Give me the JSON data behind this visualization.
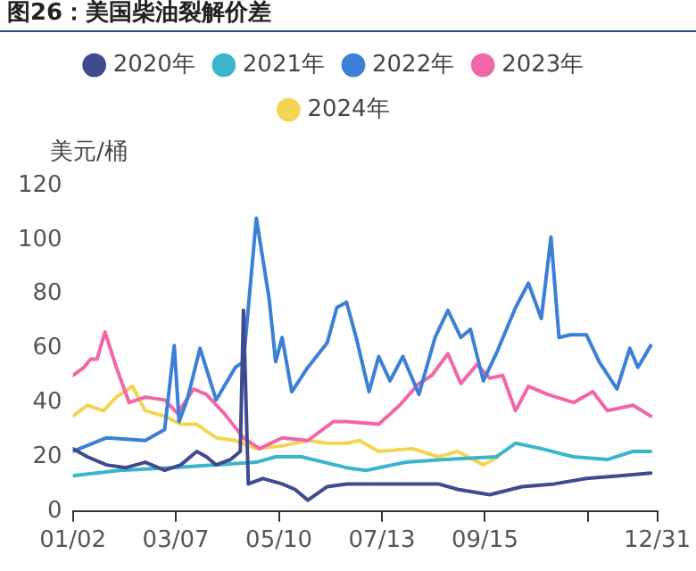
{
  "chart_data": {
    "type": "line",
    "title": "图26：美国柴油裂解价差",
    "ylabel": "美元/桶",
    "xlim": [
      "--01-02",
      "--12-31"
    ],
    "xticks": [
      {
        "value": "--01-02",
        "label": "01/02"
      },
      {
        "value": "--03-07",
        "label": "03/07"
      },
      {
        "value": "--05-10",
        "label": "05/10"
      },
      {
        "value": "--07-13",
        "label": "07/13"
      },
      {
        "value": "--09-15",
        "label": "09/15"
      },
      {
        "value": "--11-18",
        "label": null
      },
      {
        "value": "--12-31",
        "label": "12/31"
      }
    ],
    "ylim": [
      0,
      120
    ],
    "yticks": [
      0,
      20,
      40,
      60,
      80,
      100,
      120
    ],
    "grid": false,
    "legend": "top",
    "marker": "none",
    "line_style": "solid",
    "series": [
      {
        "name": "2020年",
        "color": "#3f4a8f",
        "x": [
          "--01-02",
          "--01-11",
          "--01-23",
          "--02-04",
          "--02-16",
          "--02-28",
          "--03-10",
          "--03-20",
          "--03-26",
          "--04-01",
          "--04-10",
          "--04-16",
          "--04-18",
          "--04-21",
          "--04-30",
          "--05-12",
          "--05-20",
          "--05-28",
          "--06-09",
          "--06-21",
          "--07-20",
          "--08-17",
          "--08-29",
          "--09-18",
          "--10-08",
          "--10-28",
          "--11-17",
          "--12-08",
          "--12-27"
        ],
        "values": [
          23,
          20,
          17,
          16,
          18,
          15,
          17,
          22,
          20,
          17,
          19,
          22,
          74,
          10,
          12,
          10,
          8,
          4,
          9,
          10,
          10,
          10,
          8,
          6,
          9,
          10,
          12,
          13,
          14
        ]
      },
      {
        "name": "2021年",
        "color": "#3ab5cc",
        "x": [
          "--01-02",
          "--01-31",
          "--03-04",
          "--04-01",
          "--04-26",
          "--05-08",
          "--05-24",
          "--06-21",
          "--07-03",
          "--07-28",
          "--08-21",
          "--09-22",
          "--10-04",
          "--10-20",
          "--11-09",
          "--11-30",
          "--12-16",
          "--12-27"
        ],
        "values": [
          13,
          15,
          16,
          17,
          18,
          20,
          20,
          16,
          15,
          18,
          19,
          20,
          25,
          23,
          20,
          19,
          22,
          22
        ]
      },
      {
        "name": "2022年",
        "color": "#3b7fd6",
        "x": [
          "--01-02",
          "--01-23",
          "--02-16",
          "--02-28",
          "--03-06",
          "--03-09",
          "--03-14",
          "--03-22",
          "--04-01",
          "--04-13",
          "--04-18",
          "--04-26",
          "--05-04",
          "--05-08",
          "--05-12",
          "--05-18",
          "--05-28",
          "--06-09",
          "--06-15",
          "--06-21",
          "--06-27",
          "--07-05",
          "--07-11",
          "--07-18",
          "--07-26",
          "--08-05",
          "--08-15",
          "--08-23",
          "--08-31",
          "--09-06",
          "--09-14",
          "--09-22",
          "--10-04",
          "--10-12",
          "--10-20",
          "--10-26",
          "--10-31",
          "--11-07",
          "--11-17",
          "--11-25",
          "--12-06",
          "--12-14",
          "--12-19",
          "--12-27"
        ],
        "values": [
          22,
          27,
          26,
          30,
          61,
          33,
          41,
          60,
          41,
          53,
          55,
          108,
          78,
          55,
          64,
          44,
          53,
          62,
          75,
          77,
          64,
          44,
          57,
          48,
          57,
          43,
          64,
          74,
          64,
          67,
          48,
          58,
          75,
          84,
          71,
          101,
          64,
          65,
          65,
          55,
          45,
          60,
          53,
          61
        ]
      },
      {
        "name": "2023年",
        "color": "#f266a8",
        "x": [
          "--01-02",
          "--01-09",
          "--01-13",
          "--01-17",
          "--01-22",
          "--01-29",
          "--02-06",
          "--02-16",
          "--02-28",
          "--03-08",
          "--03-18",
          "--03-26",
          "--04-06",
          "--04-18",
          "--04-28",
          "--05-12",
          "--05-28",
          "--06-13",
          "--06-21",
          "--07-11",
          "--07-24",
          "--08-05",
          "--08-13",
          "--08-23",
          "--08-31",
          "--09-10",
          "--09-18",
          "--09-26",
          "--10-04",
          "--10-12",
          "--10-24",
          "--11-09",
          "--11-21",
          "--11-30",
          "--12-16",
          "--12-27"
        ],
        "values": [
          50,
          53,
          56,
          56,
          66,
          53,
          40,
          42,
          41,
          36,
          45,
          43,
          36,
          27,
          23,
          27,
          26,
          33,
          33,
          32,
          39,
          47,
          50,
          58,
          47,
          54,
          49,
          50,
          37,
          46,
          43,
          40,
          44,
          37,
          39,
          35
        ]
      },
      {
        "name": "2024年",
        "color": "#f2d550",
        "x": [
          "--01-02",
          "--01-11",
          "--01-21",
          "--01-29",
          "--02-08",
          "--02-16",
          "--02-28",
          "--03-10",
          "--03-20",
          "--04-01",
          "--04-13",
          "--04-26",
          "--05-12",
          "--05-28",
          "--06-09",
          "--06-21",
          "--06-29",
          "--07-11",
          "--08-01",
          "--08-17",
          "--08-29",
          "--09-14",
          "--09-23"
        ],
        "values": [
          35,
          39,
          37,
          42,
          46,
          37,
          35,
          32,
          32,
          27,
          26,
          23,
          24,
          26,
          25,
          25,
          26,
          22,
          23,
          20,
          22,
          17,
          20
        ]
      }
    ]
  }
}
